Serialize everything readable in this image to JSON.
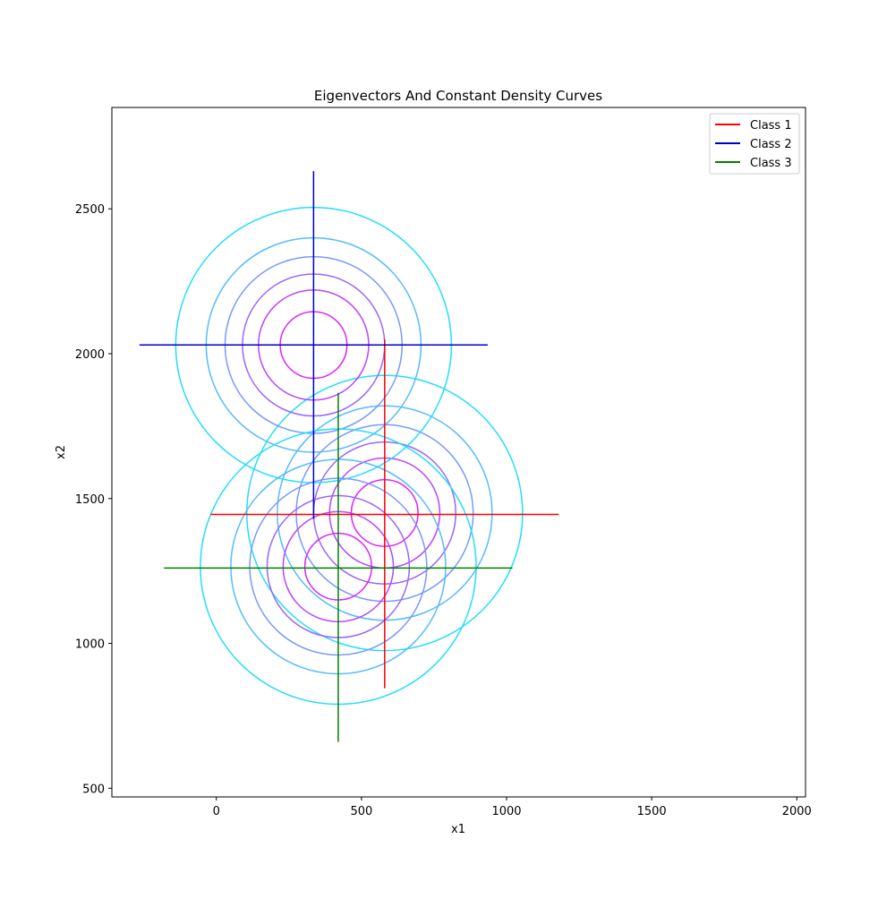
{
  "chart_data": {
    "type": "line",
    "title": "Eigenvectors And Constant Density Curves",
    "xlabel": "x1",
    "ylabel": "x2",
    "xlim": [
      -360,
      2030
    ],
    "ylim": [
      470,
      2850
    ],
    "xticks": [
      0,
      500,
      1000,
      1500,
      2000
    ],
    "yticks": [
      500,
      1000,
      1500,
      2000,
      2500
    ],
    "grid": false,
    "legend_position": "top-right",
    "series": [
      {
        "name": "Class 1",
        "color": "#ff0000",
        "mean": [
          580,
          1450
        ],
        "eigenvectors": [
          {
            "from": [
              -20,
              1445
            ],
            "to": [
              1180,
              1445
            ]
          },
          {
            "from": [
              580,
              845
            ],
            "to": [
              580,
              2050
            ]
          }
        ]
      },
      {
        "name": "Class 2",
        "color": "#0000cc",
        "mean": [
          335,
          2030
        ],
        "eigenvectors": [
          {
            "from": [
              -265,
              2030
            ],
            "to": [
              935,
              2030
            ]
          },
          {
            "from": [
              335,
              1430
            ],
            "to": [
              335,
              2630
            ]
          }
        ]
      },
      {
        "name": "Class 3",
        "color": "#008000",
        "mean": [
          420,
          1265
        ],
        "eigenvectors": [
          {
            "from": [
              -180,
              1260
            ],
            "to": [
              1020,
              1260
            ]
          },
          {
            "from": [
              420,
              660
            ],
            "to": [
              420,
              1865
            ]
          }
        ]
      }
    ],
    "density_contours": {
      "centers": [
        [
          580,
          1450
        ],
        [
          335,
          2030
        ],
        [
          420,
          1265
        ]
      ],
      "radii": [
        115,
        190,
        245,
        305,
        370,
        475
      ],
      "colors": [
        "#dd22ff",
        "#bb44ff",
        "#9966ff",
        "#7799ff",
        "#55bbff",
        "#22ddff"
      ]
    }
  }
}
